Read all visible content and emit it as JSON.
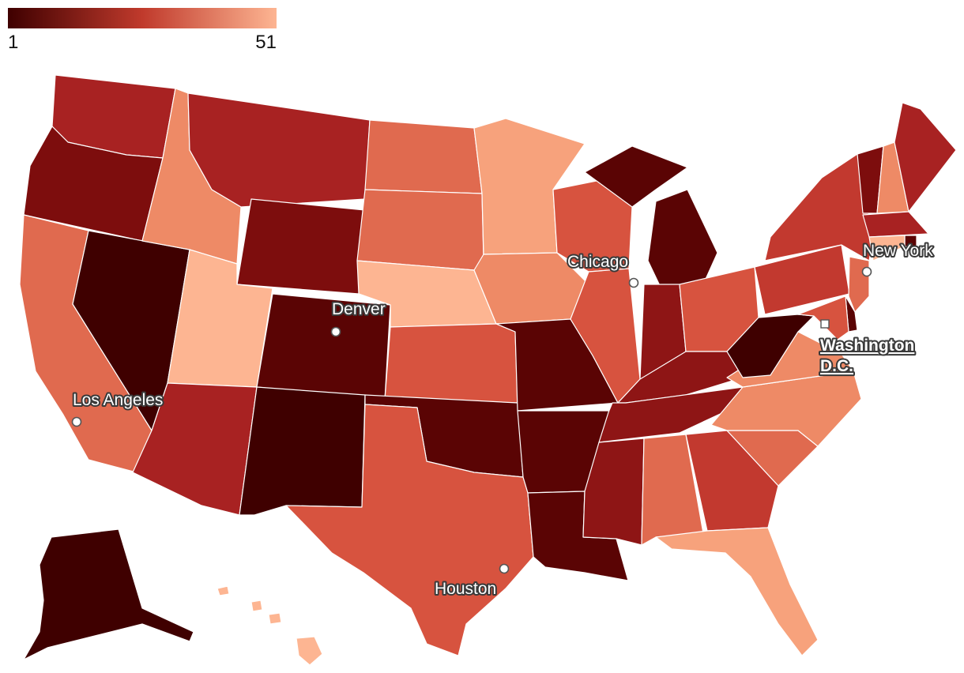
{
  "legend": {
    "min_label": "1",
    "max_label": "51",
    "color_low": "#3f0000",
    "color_mid": "#c03a2c",
    "color_high": "#fdb592"
  },
  "cities": [
    {
      "id": "chicago",
      "label": "Chicago"
    },
    {
      "id": "new-york",
      "label": "New York"
    },
    {
      "id": "denver",
      "label": "Denver"
    },
    {
      "id": "los-angeles",
      "label": "Los Angeles"
    },
    {
      "id": "houston",
      "label": "Houston"
    }
  ],
  "capital": {
    "line1": "Washington",
    "line2": "D.C."
  },
  "palette": {
    "darkest": "#3f0000",
    "very_dark": "#5a0404",
    "dark": "#7d0d0d",
    "dark_red": "#8e1515",
    "red": "#a82222",
    "medium_red": "#c2392f",
    "medium": "#d7533f",
    "orange_red": "#e06a4f",
    "salmon": "#ee8a66",
    "light_salmon": "#f7a27c",
    "peach": "#fdb592"
  },
  "states": {
    "WA": "red",
    "OR": "dark",
    "CA": "orange_red",
    "NV": "darkest",
    "ID": "salmon",
    "MT": "red",
    "WY": "dark",
    "UT": "peach",
    "AZ": "red",
    "CO": "very_dark",
    "NM": "darkest",
    "ND": "orange_red",
    "SD": "orange_red",
    "NE": "peach",
    "KS": "medium",
    "OK": "very_dark",
    "TX": "medium",
    "MN": "light_salmon",
    "IA": "salmon",
    "MO": "very_dark",
    "AR": "very_dark",
    "LA": "very_dark",
    "WI": "medium",
    "IL": "medium",
    "MI": "very_dark",
    "IN": "dark_red",
    "OH": "medium",
    "KY": "dark_red",
    "TN": "dark_red",
    "MS": "dark_red",
    "AL": "orange_red",
    "GA": "medium_red",
    "FL": "light_salmon",
    "SC": "orange_red",
    "NC": "salmon",
    "VA": "salmon",
    "WV": "darkest",
    "PA": "medium_red",
    "NY": "medium_red",
    "VT": "dark",
    "NH": "salmon",
    "ME": "red",
    "MA": "red",
    "RI": "very_dark",
    "CT": "peach",
    "NJ": "orange_red",
    "DE": "very_dark",
    "MD": "medium",
    "AK": "darkest",
    "HI": "peach"
  }
}
